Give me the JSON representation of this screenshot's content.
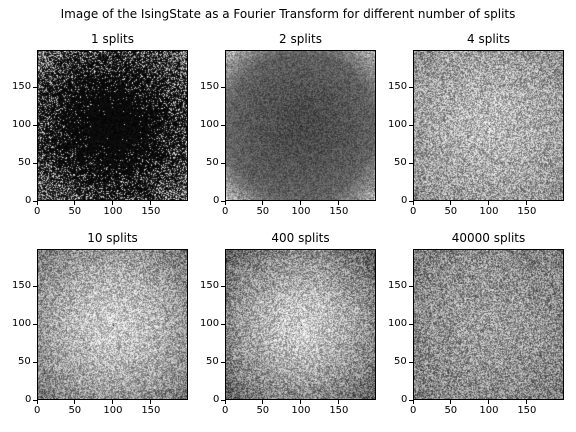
{
  "figure": {
    "title": "Image of the IsingState as a Fourier Transform for different number of splits"
  },
  "chart_data": [
    {
      "type": "heatmap",
      "title": "1 splits",
      "colormap": "gray",
      "image_size": [
        200,
        200
      ],
      "xlim": [
        0,
        199
      ],
      "ylim": [
        199,
        0
      ],
      "xticks": [
        0,
        50,
        100,
        150
      ],
      "yticks": [
        0,
        50,
        100,
        150
      ],
      "description_values": {
        "center_brightness": 0.02,
        "edge_brightness": 0.35,
        "noise": 0.35
      }
    },
    {
      "type": "heatmap",
      "title": "2 splits",
      "colormap": "gray",
      "image_size": [
        200,
        200
      ],
      "xlim": [
        0,
        199
      ],
      "ylim": [
        199,
        0
      ],
      "xticks": [
        0,
        50,
        100,
        150
      ],
      "yticks": [
        0,
        50,
        100,
        150
      ],
      "description_values": {
        "center_brightness": 0.28,
        "edge_brightness": 0.45,
        "noise": 0.25
      }
    },
    {
      "type": "heatmap",
      "title": "4 splits",
      "colormap": "gray",
      "image_size": [
        200,
        200
      ],
      "xlim": [
        0,
        199
      ],
      "ylim": [
        199,
        0
      ],
      "xticks": [
        0,
        50,
        100,
        150
      ],
      "yticks": [
        0,
        50,
        100,
        150
      ],
      "description_values": {
        "center_brightness": 0.72,
        "edge_brightness": 0.55,
        "noise": 0.3
      }
    },
    {
      "type": "heatmap",
      "title": "10 splits",
      "colormap": "gray",
      "image_size": [
        200,
        200
      ],
      "xlim": [
        0,
        199
      ],
      "ylim": [
        199,
        0
      ],
      "xticks": [
        0,
        50,
        100,
        150
      ],
      "yticks": [
        0,
        50,
        100,
        150
      ],
      "description_values": {
        "center_brightness": 0.8,
        "edge_brightness": 0.45,
        "noise": 0.28
      }
    },
    {
      "type": "heatmap",
      "title": "400 splits",
      "colormap": "gray",
      "image_size": [
        200,
        200
      ],
      "xlim": [
        0,
        199
      ],
      "ylim": [
        199,
        0
      ],
      "xticks": [
        0,
        50,
        100,
        150
      ],
      "yticks": [
        0,
        50,
        100,
        150
      ],
      "description_values": {
        "center_brightness": 0.8,
        "edge_brightness": 0.35,
        "noise": 0.28
      }
    },
    {
      "type": "heatmap",
      "title": "40000 splits",
      "colormap": "gray",
      "image_size": [
        200,
        200
      ],
      "xlim": [
        0,
        199
      ],
      "ylim": [
        199,
        0
      ],
      "xticks": [
        0,
        50,
        100,
        150
      ],
      "yticks": [
        0,
        50,
        100,
        150
      ],
      "description_values": {
        "center_brightness": 0.62,
        "edge_brightness": 0.48,
        "noise": 0.3
      }
    }
  ]
}
